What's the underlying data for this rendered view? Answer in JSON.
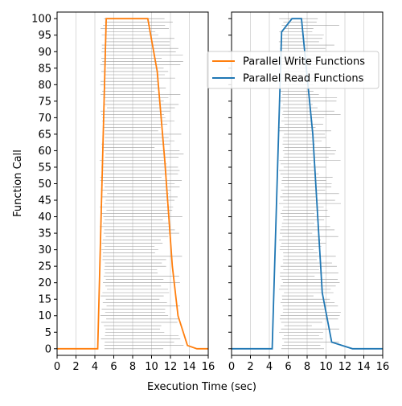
{
  "chart_data": {
    "type": "line",
    "xlabel": "Execution Time (sec)",
    "ylabel": "Function Call",
    "x_ticks": [
      0,
      2,
      4,
      6,
      8,
      10,
      12,
      14,
      16
    ],
    "y_ticks": [
      0,
      5,
      10,
      15,
      20,
      25,
      30,
      35,
      40,
      45,
      50,
      55,
      60,
      65,
      70,
      75,
      80,
      85,
      90,
      95,
      100
    ],
    "xlim": [
      0,
      16
    ],
    "ylim": [
      -2,
      102
    ],
    "grid": "vertical",
    "legend": {
      "placement": "upper-right",
      "entries": [
        "Parallel Write Functions",
        "Parallel Read Functions"
      ]
    },
    "colors": {
      "write": "#ff7f0e",
      "read": "#1f77b4",
      "bars": "#999999"
    },
    "panels": [
      {
        "series": {
          "name": "Parallel Write Functions",
          "color": "#ff7f0e",
          "points": [
            [
              0,
              0
            ],
            [
              4.3,
              0
            ],
            [
              5.2,
              100
            ],
            [
              9.6,
              100
            ],
            [
              10.6,
              84
            ],
            [
              11.4,
              57
            ],
            [
              12.2,
              25
            ],
            [
              12.8,
              10
            ],
            [
              13.8,
              1
            ],
            [
              14.8,
              0
            ],
            [
              16,
              0
            ]
          ]
        },
        "bars_start_range": [
          4.5,
          5.3
        ],
        "bars_end_range": [
          10.3,
          13.4
        ]
      },
      {
        "series": {
          "name": "Parallel Read Functions",
          "color": "#1f77b4",
          "points": [
            [
              0,
              0
            ],
            [
              4.3,
              0
            ],
            [
              5.3,
              96
            ],
            [
              6.4,
              100
            ],
            [
              7.4,
              100
            ],
            [
              8.6,
              65
            ],
            [
              9.6,
              17
            ],
            [
              10.6,
              2
            ],
            [
              12.8,
              0
            ],
            [
              16,
              0
            ]
          ]
        },
        "bars_start_range": [
          5.0,
          5.6
        ],
        "bars_end_range": [
          8.4,
          11.6
        ]
      }
    ]
  }
}
